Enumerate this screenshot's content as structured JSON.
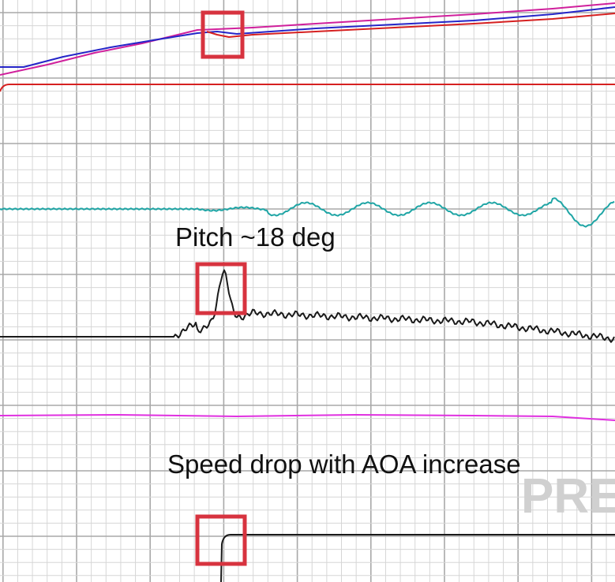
{
  "annotations": {
    "pitch": "Pitch ~18 deg",
    "speed": "Speed drop with AOA increase"
  },
  "watermark": "PRE"
}
